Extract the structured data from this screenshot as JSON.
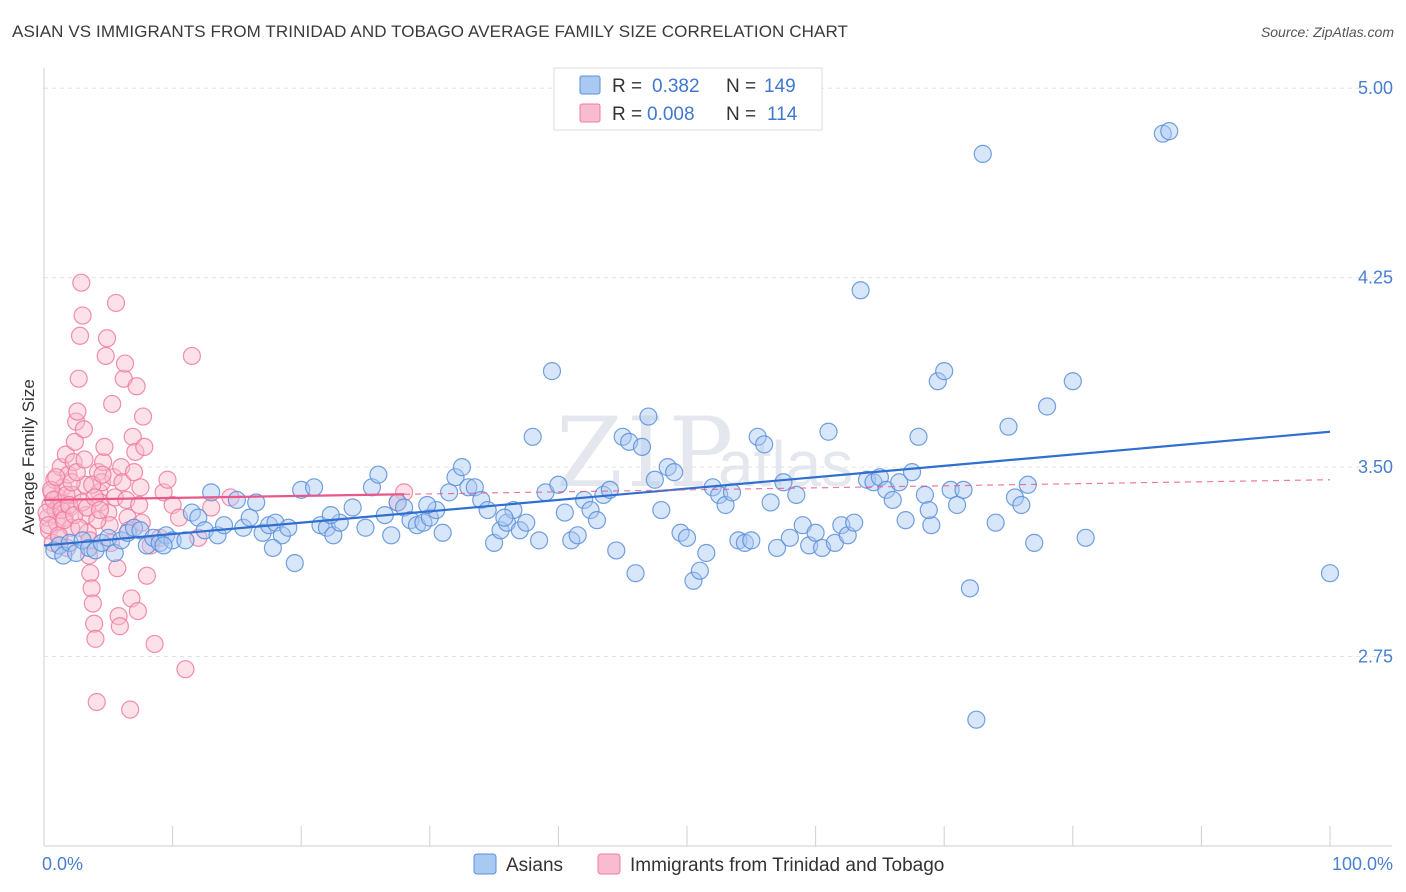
{
  "title": "ASIAN VS IMMIGRANTS FROM TRINIDAD AND TOBAGO AVERAGE FAMILY SIZE CORRELATION CHART",
  "source": "Source: ZipAtlas.com",
  "watermark": {
    "main": "ZIP",
    "sub": "atlas"
  },
  "colors": {
    "series1_fill": "#a9c8f2",
    "series1_stroke": "#5b8fd9",
    "series1_line": "#2f6fd0",
    "series2_fill": "#f8bccf",
    "series2_stroke": "#ee7aa0",
    "series2_line": "#e8588a",
    "tick_text": "#4a7fd0",
    "grid": "#e3e3e3"
  },
  "legend": {
    "rows": [
      {
        "r_label": "R = ",
        "r_value": "0.382",
        "n_label": "N = ",
        "n_value": "149"
      },
      {
        "r_label": "R = ",
        "r_value": "0.008",
        "n_label": "N = ",
        "n_value": "114"
      }
    ]
  },
  "bottom_legend": [
    "Asians",
    "Immigrants from Trinidad and Tobago"
  ],
  "chart_data": {
    "type": "scatter",
    "title": "ASIAN VS IMMIGRANTS FROM TRINIDAD AND TOBAGO AVERAGE FAMILY SIZE CORRELATION CHART",
    "xlabel": "",
    "ylabel": "Average Family Size",
    "xlim": [
      0,
      100
    ],
    "ylim": [
      2.0,
      5.08
    ],
    "x_tick_labels": [
      "0.0%",
      "100.0%"
    ],
    "y_ticks": [
      2.75,
      3.5,
      4.25,
      5.0
    ],
    "y_tick_labels": [
      "2.75",
      "3.50",
      "4.25",
      "5.00"
    ],
    "grid": "horizontal dashed",
    "legend_position": "top-center",
    "series": [
      {
        "name": "Asians",
        "r": 0.382,
        "n": 149,
        "trend": {
          "x": [
            0,
            100
          ],
          "y": [
            3.19,
            3.64
          ]
        },
        "points": [
          [
            0.8,
            3.17
          ],
          [
            1.2,
            3.19
          ],
          [
            1.5,
            3.15
          ],
          [
            2.0,
            3.2
          ],
          [
            2.5,
            3.16
          ],
          [
            3.0,
            3.21
          ],
          [
            3.5,
            3.18
          ],
          [
            4.0,
            3.17
          ],
          [
            4.5,
            3.2
          ],
          [
            5.0,
            3.22
          ],
          [
            5.5,
            3.16
          ],
          [
            6.0,
            3.21
          ],
          [
            6.5,
            3.24
          ],
          [
            7.0,
            3.26
          ],
          [
            7.5,
            3.25
          ],
          [
            8.0,
            3.19
          ],
          [
            8.5,
            3.22
          ],
          [
            9.0,
            3.2
          ],
          [
            9.5,
            3.23
          ],
          [
            10.0,
            3.21
          ],
          [
            11.0,
            3.21
          ],
          [
            11.5,
            3.32
          ],
          [
            12.0,
            3.3
          ],
          [
            12.5,
            3.25
          ],
          [
            13.0,
            3.4
          ],
          [
            13.5,
            3.23
          ],
          [
            14.0,
            3.27
          ],
          [
            15.0,
            3.37
          ],
          [
            15.5,
            3.26
          ],
          [
            16.0,
            3.3
          ],
          [
            16.5,
            3.36
          ],
          [
            17.0,
            3.24
          ],
          [
            17.5,
            3.27
          ],
          [
            18.0,
            3.28
          ],
          [
            18.5,
            3.23
          ],
          [
            19.0,
            3.26
          ],
          [
            19.5,
            3.12
          ],
          [
            20.0,
            3.41
          ],
          [
            21.0,
            3.42
          ],
          [
            21.5,
            3.27
          ],
          [
            22.0,
            3.26
          ],
          [
            22.5,
            3.23
          ],
          [
            23.0,
            3.28
          ],
          [
            24.0,
            3.34
          ],
          [
            25.0,
            3.26
          ],
          [
            25.5,
            3.42
          ],
          [
            26.0,
            3.47
          ],
          [
            26.5,
            3.31
          ],
          [
            27.0,
            3.23
          ],
          [
            27.5,
            3.36
          ],
          [
            28.0,
            3.34
          ],
          [
            28.5,
            3.29
          ],
          [
            29.0,
            3.27
          ],
          [
            29.5,
            3.28
          ],
          [
            30.0,
            3.3
          ],
          [
            30.5,
            3.33
          ],
          [
            31.0,
            3.24
          ],
          [
            31.5,
            3.4
          ],
          [
            32.0,
            3.46
          ],
          [
            32.5,
            3.5
          ],
          [
            33.0,
            3.42
          ],
          [
            33.5,
            3.42
          ],
          [
            34.0,
            3.37
          ],
          [
            34.5,
            3.33
          ],
          [
            35.0,
            3.2
          ],
          [
            35.5,
            3.25
          ],
          [
            36.0,
            3.28
          ],
          [
            36.5,
            3.33
          ],
          [
            37.0,
            3.25
          ],
          [
            37.5,
            3.28
          ],
          [
            38.0,
            3.62
          ],
          [
            38.5,
            3.21
          ],
          [
            39.0,
            3.4
          ],
          [
            39.5,
            3.88
          ],
          [
            40.0,
            3.43
          ],
          [
            40.5,
            3.32
          ],
          [
            41.0,
            3.21
          ],
          [
            41.5,
            3.23
          ],
          [
            42.0,
            3.37
          ],
          [
            42.5,
            3.33
          ],
          [
            43.0,
            3.29
          ],
          [
            43.5,
            3.39
          ],
          [
            44.0,
            3.41
          ],
          [
            44.5,
            3.17
          ],
          [
            45.0,
            3.62
          ],
          [
            45.5,
            3.6
          ],
          [
            46.0,
            3.08
          ],
          [
            46.5,
            3.58
          ],
          [
            47.0,
            3.7
          ],
          [
            47.5,
            3.45
          ],
          [
            48.0,
            3.33
          ],
          [
            48.5,
            3.5
          ],
          [
            49.0,
            3.48
          ],
          [
            49.5,
            3.24
          ],
          [
            50.0,
            3.22
          ],
          [
            50.5,
            3.05
          ],
          [
            51.0,
            3.09
          ],
          [
            51.5,
            3.16
          ],
          [
            52.0,
            3.42
          ],
          [
            52.5,
            3.39
          ],
          [
            53.0,
            3.35
          ],
          [
            53.5,
            3.4
          ],
          [
            54.0,
            3.21
          ],
          [
            54.5,
            3.2
          ],
          [
            55.0,
            3.21
          ],
          [
            55.5,
            3.62
          ],
          [
            56.0,
            3.59
          ],
          [
            56.5,
            3.36
          ],
          [
            57.0,
            3.18
          ],
          [
            57.5,
            3.44
          ],
          [
            58.0,
            3.22
          ],
          [
            58.5,
            3.39
          ],
          [
            59.0,
            3.27
          ],
          [
            59.5,
            3.19
          ],
          [
            60.0,
            3.24
          ],
          [
            60.5,
            3.18
          ],
          [
            61.0,
            3.64
          ],
          [
            61.5,
            3.2
          ],
          [
            62.0,
            3.27
          ],
          [
            62.5,
            3.23
          ],
          [
            63.0,
            3.28
          ],
          [
            63.5,
            4.2
          ],
          [
            64.0,
            3.45
          ],
          [
            64.5,
            3.44
          ],
          [
            65.0,
            3.46
          ],
          [
            65.5,
            3.41
          ],
          [
            66.0,
            3.37
          ],
          [
            66.5,
            3.44
          ],
          [
            67.0,
            3.29
          ],
          [
            67.5,
            3.48
          ],
          [
            68.0,
            3.62
          ],
          [
            68.5,
            3.39
          ],
          [
            69.0,
            3.27
          ],
          [
            69.5,
            3.84
          ],
          [
            70.0,
            3.88
          ],
          [
            70.5,
            3.41
          ],
          [
            71.0,
            3.35
          ],
          [
            71.5,
            3.41
          ],
          [
            72.0,
            3.02
          ],
          [
            72.5,
            2.5
          ],
          [
            73.0,
            4.74
          ],
          [
            74.0,
            3.28
          ],
          [
            75.0,
            3.66
          ],
          [
            75.5,
            3.38
          ],
          [
            76.0,
            3.35
          ],
          [
            76.5,
            3.43
          ],
          [
            77.0,
            3.2
          ],
          [
            78.0,
            3.74
          ],
          [
            80.0,
            3.84
          ],
          [
            81.0,
            3.22
          ],
          [
            87.0,
            4.82
          ],
          [
            87.5,
            4.83
          ],
          [
            100.0,
            3.08
          ],
          [
            68.8,
            3.33
          ],
          [
            35.8,
            3.3
          ],
          [
            29.8,
            3.35
          ],
          [
            22.3,
            3.31
          ],
          [
            17.8,
            3.18
          ],
          [
            9.3,
            3.19
          ]
        ]
      },
      {
        "name": "Immigrants from Trinidad and Tobago",
        "r": 0.008,
        "n": 114,
        "trend": {
          "x": [
            0,
            100
          ],
          "y": [
            3.37,
            3.45
          ]
        },
        "trend_solid_until_x": 28,
        "points": [
          [
            0.3,
            3.3
          ],
          [
            0.4,
            3.25
          ],
          [
            0.5,
            3.35
          ],
          [
            0.6,
            3.4
          ],
          [
            0.7,
            3.2
          ],
          [
            0.8,
            3.45
          ],
          [
            0.9,
            3.33
          ],
          [
            1.0,
            3.28
          ],
          [
            1.1,
            3.38
          ],
          [
            1.2,
            3.22
          ],
          [
            1.3,
            3.5
          ],
          [
            1.4,
            3.36
          ],
          [
            1.5,
            3.42
          ],
          [
            1.6,
            3.3
          ],
          [
            1.7,
            3.55
          ],
          [
            1.8,
            3.18
          ],
          [
            1.9,
            3.47
          ],
          [
            2.0,
            3.34
          ],
          [
            2.1,
            3.26
          ],
          [
            2.2,
            3.39
          ],
          [
            2.3,
            3.52
          ],
          [
            2.4,
            3.6
          ],
          [
            2.5,
            3.68
          ],
          [
            2.6,
            3.72
          ],
          [
            2.7,
            3.85
          ],
          [
            2.8,
            4.02
          ],
          [
            2.9,
            4.23
          ],
          [
            3.0,
            4.1
          ],
          [
            3.1,
            3.65
          ],
          [
            3.2,
            3.43
          ],
          [
            3.3,
            3.31
          ],
          [
            3.4,
            3.24
          ],
          [
            3.5,
            3.15
          ],
          [
            3.6,
            3.08
          ],
          [
            3.7,
            3.02
          ],
          [
            3.8,
            2.96
          ],
          [
            3.9,
            2.88
          ],
          [
            4.0,
            2.82
          ],
          [
            4.1,
            2.57
          ],
          [
            4.2,
            3.48
          ],
          [
            4.3,
            3.4
          ],
          [
            4.4,
            3.36
          ],
          [
            4.5,
            3.44
          ],
          [
            4.6,
            3.52
          ],
          [
            4.7,
            3.58
          ],
          [
            4.8,
            3.94
          ],
          [
            4.9,
            4.01
          ],
          [
            5.0,
            3.32
          ],
          [
            5.1,
            3.27
          ],
          [
            5.2,
            3.2
          ],
          [
            5.3,
            3.75
          ],
          [
            5.4,
            3.46
          ],
          [
            5.5,
            3.38
          ],
          [
            5.6,
            4.15
          ],
          [
            5.7,
            3.1
          ],
          [
            5.8,
            2.91
          ],
          [
            5.9,
            2.87
          ],
          [
            6.0,
            3.5
          ],
          [
            6.1,
            3.44
          ],
          [
            6.2,
            3.85
          ],
          [
            6.3,
            3.91
          ],
          [
            6.4,
            3.37
          ],
          [
            6.5,
            3.3
          ],
          [
            6.6,
            3.25
          ],
          [
            6.7,
            2.54
          ],
          [
            6.8,
            2.98
          ],
          [
            6.9,
            3.62
          ],
          [
            7.0,
            3.48
          ],
          [
            7.1,
            3.56
          ],
          [
            7.2,
            3.82
          ],
          [
            7.3,
            2.93
          ],
          [
            7.4,
            3.35
          ],
          [
            7.5,
            3.42
          ],
          [
            7.6,
            3.28
          ],
          [
            7.7,
            3.7
          ],
          [
            7.8,
            3.58
          ],
          [
            8.0,
            3.07
          ],
          [
            8.3,
            3.19
          ],
          [
            8.6,
            2.8
          ],
          [
            9.0,
            3.22
          ],
          [
            9.3,
            3.4
          ],
          [
            9.6,
            3.45
          ],
          [
            10.0,
            3.35
          ],
          [
            10.5,
            3.3
          ],
          [
            11.0,
            2.7
          ],
          [
            11.5,
            3.94
          ],
          [
            12.0,
            3.22
          ],
          [
            13.0,
            3.34
          ],
          [
            14.5,
            3.38
          ],
          [
            0.2,
            3.32
          ],
          [
            0.35,
            3.27
          ],
          [
            0.55,
            3.41
          ],
          [
            0.75,
            3.37
          ],
          [
            0.95,
            3.46
          ],
          [
            1.15,
            3.23
          ],
          [
            1.35,
            3.33
          ],
          [
            1.55,
            3.29
          ],
          [
            1.75,
            3.39
          ],
          [
            1.95,
            3.35
          ],
          [
            2.15,
            3.44
          ],
          [
            2.35,
            3.31
          ],
          [
            2.55,
            3.48
          ],
          [
            2.75,
            3.26
          ],
          [
            2.95,
            3.36
          ],
          [
            3.15,
            3.53
          ],
          [
            3.35,
            3.34
          ],
          [
            3.55,
            3.21
          ],
          [
            3.75,
            3.43
          ],
          [
            3.95,
            3.38
          ],
          [
            4.15,
            3.29
          ],
          [
            4.35,
            3.33
          ],
          [
            4.55,
            3.47
          ],
          [
            28.0,
            3.4
          ],
          [
            27.5,
            3.36
          ]
        ]
      }
    ]
  }
}
